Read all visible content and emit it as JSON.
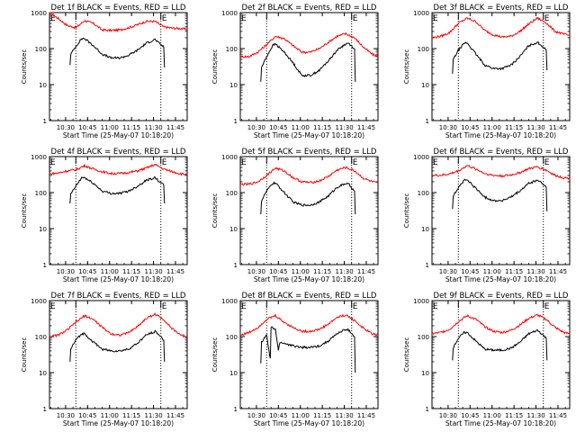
{
  "colors": {
    "events": "#000000",
    "lld": "#ff0000",
    "axes": "#000000",
    "background": "#ffffff"
  },
  "chart_data": [
    {
      "type": "line",
      "title": "Det 1f BLACK = Events, RED = LLD",
      "xlabel": "Start Time (25-May-07 10:18:20)",
      "ylabel": "Counts/sec",
      "y_scale": "log",
      "ylim": [
        1,
        1000
      ],
      "xlim": [
        "10:19",
        "11:53"
      ],
      "x_ticks": [
        "10:30",
        "10:45",
        "11:00",
        "11:15",
        "11:30",
        "11:45"
      ],
      "y_ticks": [
        "1",
        "10",
        "100",
        "1000"
      ],
      "vlines": [
        "10:37",
        "11:35"
      ],
      "markers": [
        "E",
        "E"
      ],
      "grid": false,
      "series": [
        {
          "x": [
            "10:19",
            "10:25",
            "10:31",
            "10:37",
            "10:43",
            "10:49",
            "10:55",
            "11:01",
            "11:07",
            "11:13",
            "11:19",
            "11:25",
            "11:31",
            "11:37",
            "11:43",
            "11:49",
            "11:53"
          ],
          "values": [
            1000,
            690,
            440,
            380,
            600,
            500,
            330,
            320,
            330,
            380,
            460,
            570,
            570,
            400,
            370,
            360,
            340
          ]
        },
        {
          "x": [
            "10:33",
            "10:33.5",
            "10:37",
            "10:41",
            "10:43",
            "10:49",
            "10:55",
            "11:01",
            "11:07",
            "11:13",
            "11:19",
            "11:25",
            "11:31",
            "11:33",
            "11:37",
            "11:37.5"
          ],
          "values": [
            35,
            70,
            115,
            190,
            190,
            120,
            70,
            55,
            55,
            65,
            90,
            140,
            180,
            150,
            110,
            30
          ]
        }
      ]
    },
    {
      "type": "line",
      "title": "Det 2f BLACK = Events, RED = LLD",
      "xlabel": "Start Time (25-May-07 10:18:20)",
      "ylabel": "Counts/sec",
      "y_scale": "log",
      "ylim": [
        1,
        1000
      ],
      "xlim": [
        "10:19",
        "11:53"
      ],
      "x_ticks": [
        "10:30",
        "10:45",
        "11:00",
        "11:15",
        "11:30",
        "11:45"
      ],
      "y_ticks": [
        "1",
        "10",
        "100",
        "1000"
      ],
      "vlines": [
        "10:37",
        "11:35"
      ],
      "markers": [
        "E",
        "E"
      ],
      "grid": false,
      "series": [
        {
          "x": [
            "10:19",
            "10:25",
            "10:31",
            "10:37",
            "10:43",
            "10:49",
            "10:55",
            "11:01",
            "11:07",
            "11:13",
            "11:19",
            "11:25",
            "11:31",
            "11:37",
            "11:43",
            "11:49",
            "11:53"
          ],
          "values": [
            60,
            60,
            80,
            130,
            220,
            190,
            120,
            80,
            80,
            100,
            150,
            220,
            260,
            200,
            110,
            70,
            60
          ]
        },
        {
          "x": [
            "10:33",
            "10:33.5",
            "10:37",
            "10:41",
            "10:43",
            "10:49",
            "10:55",
            "11:01",
            "11:07",
            "11:13",
            "11:19",
            "11:25",
            "11:31",
            "11:33",
            "11:37",
            "11:37.5"
          ],
          "values": [
            12,
            30,
            60,
            120,
            135,
            80,
            40,
            18,
            18,
            25,
            45,
            90,
            135,
            140,
            100,
            12
          ]
        }
      ]
    },
    {
      "type": "line",
      "title": "Det 3f BLACK = Events, RED = LLD",
      "xlabel": "Start Time (25-May-07 10:18:20)",
      "ylabel": "Counts/sec",
      "y_scale": "log",
      "ylim": [
        1,
        1000
      ],
      "xlim": [
        "10:19",
        "11:53"
      ],
      "x_ticks": [
        "10:30",
        "10:45",
        "11:00",
        "11:15",
        "11:30",
        "11:45"
      ],
      "y_ticks": [
        "1",
        "10",
        "100",
        "1000"
      ],
      "vlines": [
        "10:37",
        "11:35"
      ],
      "markers": [
        "E",
        "E"
      ],
      "grid": false,
      "series": [
        {
          "x": [
            "10:19",
            "10:25",
            "10:31",
            "10:37",
            "10:43",
            "10:49",
            "10:55",
            "11:01",
            "11:07",
            "11:13",
            "11:19",
            "11:25",
            "11:31",
            "11:37",
            "11:43",
            "11:49",
            "11:53"
          ],
          "values": [
            200,
            220,
            280,
            500,
            700,
            560,
            320,
            240,
            210,
            220,
            300,
            480,
            700,
            520,
            300,
            250,
            230
          ]
        },
        {
          "x": [
            "10:33",
            "10:33.5",
            "10:37",
            "10:41",
            "10:43",
            "10:49",
            "10:55",
            "11:01",
            "11:07",
            "11:13",
            "11:19",
            "11:25",
            "11:31",
            "11:33",
            "11:37",
            "11:37.5"
          ],
          "values": [
            20,
            50,
            90,
            140,
            145,
            70,
            35,
            28,
            28,
            35,
            60,
            120,
            150,
            130,
            90,
            25
          ]
        }
      ]
    },
    {
      "type": "line",
      "title": "Det 4f BLACK = Events, RED = LLD",
      "xlabel": "Start Time (25-May-07 10:18:20)",
      "ylabel": "Counts/sec",
      "y_scale": "log",
      "ylim": [
        1,
        1000
      ],
      "xlim": [
        "10:19",
        "11:53"
      ],
      "x_ticks": [
        "10:30",
        "10:45",
        "11:00",
        "11:15",
        "11:30",
        "11:45"
      ],
      "y_ticks": [
        "1",
        "10",
        "100",
        "1000"
      ],
      "vlines": [
        "10:37",
        "11:35"
      ],
      "markers": [
        "E",
        "E"
      ],
      "grid": false,
      "series": [
        {
          "x": [
            "10:19",
            "10:25",
            "10:31",
            "10:37",
            "10:43",
            "10:49",
            "10:55",
            "11:01",
            "11:07",
            "11:13",
            "11:19",
            "11:25",
            "11:31",
            "11:37",
            "11:43",
            "11:49",
            "11:53"
          ],
          "values": [
            330,
            350,
            400,
            430,
            560,
            450,
            380,
            340,
            340,
            360,
            400,
            480,
            600,
            450,
            380,
            330,
            320
          ]
        },
        {
          "x": [
            "10:33",
            "10:33.5",
            "10:37",
            "10:41",
            "10:43",
            "10:49",
            "10:55",
            "11:01",
            "11:07",
            "11:13",
            "11:19",
            "11:25",
            "11:31",
            "11:33",
            "11:37",
            "11:37.5"
          ],
          "values": [
            50,
            90,
            150,
            260,
            260,
            180,
            110,
            95,
            95,
            110,
            150,
            220,
            260,
            220,
            160,
            50
          ]
        }
      ]
    },
    {
      "type": "line",
      "title": "Det 5f BLACK = Events, RED = LLD",
      "xlabel": "Start Time (25-May-07 10:18:20)",
      "ylabel": "Counts/sec",
      "y_scale": "log",
      "ylim": [
        1,
        1000
      ],
      "xlim": [
        "10:19",
        "11:53"
      ],
      "x_ticks": [
        "10:30",
        "10:45",
        "11:00",
        "11:15",
        "11:30",
        "11:45"
      ],
      "y_ticks": [
        "1",
        "10",
        "100",
        "1000"
      ],
      "vlines": [
        "10:37",
        "11:35"
      ],
      "markers": [
        "E",
        "E"
      ],
      "grid": false,
      "series": [
        {
          "x": [
            "10:19",
            "10:25",
            "10:31",
            "10:37",
            "10:43",
            "10:49",
            "10:55",
            "11:01",
            "11:07",
            "11:13",
            "11:19",
            "11:25",
            "11:31",
            "11:37",
            "11:43",
            "11:49",
            "11:53"
          ],
          "values": [
            170,
            170,
            200,
            300,
            480,
            400,
            260,
            200,
            190,
            210,
            280,
            420,
            500,
            400,
            250,
            200,
            180
          ]
        },
        {
          "x": [
            "10:33",
            "10:33.5",
            "10:37",
            "10:41",
            "10:43",
            "10:49",
            "10:55",
            "11:01",
            "11:07",
            "11:13",
            "11:19",
            "11:25",
            "11:31",
            "11:33",
            "11:37",
            "11:37.5"
          ],
          "values": [
            25,
            60,
            110,
            180,
            185,
            100,
            55,
            45,
            45,
            55,
            80,
            140,
            180,
            170,
            110,
            25
          ]
        }
      ]
    },
    {
      "type": "line",
      "title": "Det 6f BLACK = Events, RED = LLD",
      "xlabel": "Start Time (25-May-07 10:18:20)",
      "ylabel": "Counts/sec",
      "y_scale": "log",
      "ylim": [
        1,
        1000
      ],
      "xlim": [
        "10:19",
        "11:53"
      ],
      "x_ticks": [
        "10:30",
        "10:45",
        "11:00",
        "11:15",
        "11:30",
        "11:45"
      ],
      "y_ticks": [
        "1",
        "10",
        "100",
        "1000"
      ],
      "vlines": [
        "10:37",
        "11:35"
      ],
      "markers": [
        "E",
        "E"
      ],
      "grid": false,
      "series": [
        {
          "x": [
            "10:19",
            "10:25",
            "10:31",
            "10:37",
            "10:43",
            "10:49",
            "10:55",
            "11:01",
            "11:07",
            "11:13",
            "11:19",
            "11:25",
            "11:31",
            "11:37",
            "11:43",
            "11:49",
            "11:53"
          ],
          "values": [
            300,
            300,
            330,
            400,
            560,
            450,
            340,
            300,
            290,
            310,
            360,
            460,
            520,
            420,
            300,
            260,
            250
          ]
        },
        {
          "x": [
            "10:33",
            "10:33.5",
            "10:37",
            "10:41",
            "10:43",
            "10:49",
            "10:55",
            "11:01",
            "11:07",
            "11:13",
            "11:19",
            "11:25",
            "11:31",
            "11:33",
            "11:37",
            "11:37.5"
          ],
          "values": [
            35,
            80,
            140,
            220,
            225,
            130,
            75,
            60,
            60,
            75,
            110,
            180,
            220,
            200,
            140,
            30
          ]
        }
      ]
    },
    {
      "type": "line",
      "title": "Det 7f BLACK = Events, RED = LLD",
      "xlabel": "Start Time (25-May-07 10:18:20)",
      "ylabel": "Counts/sec",
      "y_scale": "log",
      "ylim": [
        1,
        1000
      ],
      "xlim": [
        "10:19",
        "11:53"
      ],
      "x_ticks": [
        "10:30",
        "10:45",
        "11:00",
        "11:15",
        "11:30",
        "11:45"
      ],
      "y_ticks": [
        "1",
        "10",
        "100",
        "1000"
      ],
      "vlines": [
        "10:37",
        "11:35"
      ],
      "markers": [
        "E",
        "E"
      ],
      "grid": false,
      "series": [
        {
          "x": [
            "10:19",
            "10:25",
            "10:31",
            "10:37",
            "10:43",
            "10:49",
            "10:55",
            "11:01",
            "11:07",
            "11:13",
            "11:19",
            "11:25",
            "11:31",
            "11:37",
            "11:43",
            "11:49",
            "11:53"
          ],
          "values": [
            100,
            110,
            150,
            250,
            380,
            300,
            180,
            120,
            110,
            130,
            190,
            320,
            420,
            300,
            160,
            110,
            100
          ]
        },
        {
          "x": [
            "10:33",
            "10:33.5",
            "10:37",
            "10:41",
            "10:43",
            "10:49",
            "10:55",
            "11:01",
            "11:07",
            "11:13",
            "11:19",
            "11:25",
            "11:31",
            "11:33",
            "11:37",
            "11:37.5"
          ],
          "values": [
            20,
            45,
            80,
            120,
            120,
            70,
            45,
            40,
            40,
            45,
            65,
            110,
            140,
            120,
            80,
            20
          ]
        }
      ]
    },
    {
      "type": "line",
      "title": "Det 8f BLACK = Events, RED = LLD",
      "xlabel": "Start Time (25-May-07 10:18:20)",
      "ylabel": "Counts/sec",
      "y_scale": "log",
      "ylim": [
        1,
        1000
      ],
      "xlim": [
        "10:19",
        "11:53"
      ],
      "x_ticks": [
        "10:30",
        "10:45",
        "11:00",
        "11:15",
        "11:30",
        "11:45"
      ],
      "y_ticks": [
        "1",
        "10",
        "100",
        "1000"
      ],
      "vlines": [
        "10:37",
        "11:35"
      ],
      "markers": [
        "E",
        "E"
      ],
      "grid": false,
      "series": [
        {
          "x": [
            "10:19",
            "10:25",
            "10:31",
            "10:37",
            "10:43",
            "10:49",
            "10:55",
            "11:01",
            "11:07",
            "11:13",
            "11:19",
            "11:25",
            "11:31",
            "11:37",
            "11:43",
            "11:49",
            "11:53"
          ],
          "values": [
            110,
            130,
            180,
            300,
            380,
            250,
            180,
            140,
            140,
            160,
            220,
            340,
            400,
            280,
            170,
            120,
            110
          ]
        },
        {
          "x": [
            "10:33",
            "10:33.5",
            "10:37",
            "10:39",
            "10:39.5",
            "10:40",
            "10:43",
            "10:45",
            "10:46",
            "10:49",
            "10:55",
            "11:01",
            "11:07",
            "11:13",
            "11:19",
            "11:25",
            "11:31",
            "11:33",
            "11:37",
            "11:37.5"
          ],
          "values": [
            18,
            70,
            110,
            30,
            25,
            180,
            160,
            40,
            70,
            65,
            55,
            50,
            50,
            55,
            75,
            120,
            160,
            150,
            100,
            10
          ]
        }
      ]
    },
    {
      "type": "line",
      "title": "Det 9f BLACK = Events, RED = LLD",
      "xlabel": "Start Time (25-May-07 10:18:20)",
      "ylabel": "Counts/sec",
      "y_scale": "log",
      "ylim": [
        1,
        1000
      ],
      "xlim": [
        "10:19",
        "11:53"
      ],
      "x_ticks": [
        "10:30",
        "10:45",
        "11:00",
        "11:15",
        "11:30",
        "11:45"
      ],
      "y_ticks": [
        "1",
        "10",
        "100",
        "1000"
      ],
      "vlines": [
        "10:37",
        "11:35"
      ],
      "markers": [
        "E",
        "E"
      ],
      "grid": false,
      "series": [
        {
          "x": [
            "10:19",
            "10:25",
            "10:31",
            "10:37",
            "10:43",
            "10:49",
            "10:55",
            "11:01",
            "11:07",
            "11:13",
            "11:19",
            "11:25",
            "11:31",
            "11:37",
            "11:43",
            "11:49",
            "11:53"
          ],
          "values": [
            120,
            130,
            160,
            260,
            380,
            300,
            190,
            140,
            130,
            150,
            210,
            320,
            400,
            300,
            180,
            130,
            120
          ]
        },
        {
          "x": [
            "10:33",
            "10:33.5",
            "10:37",
            "10:41",
            "10:43",
            "10:49",
            "10:55",
            "11:01",
            "11:07",
            "11:13",
            "11:19",
            "11:25",
            "11:31",
            "11:33",
            "11:37",
            "11:37.5"
          ],
          "values": [
            22,
            50,
            90,
            130,
            130,
            75,
            45,
            42,
            42,
            48,
            70,
            120,
            150,
            130,
            90,
            22
          ]
        }
      ]
    }
  ]
}
